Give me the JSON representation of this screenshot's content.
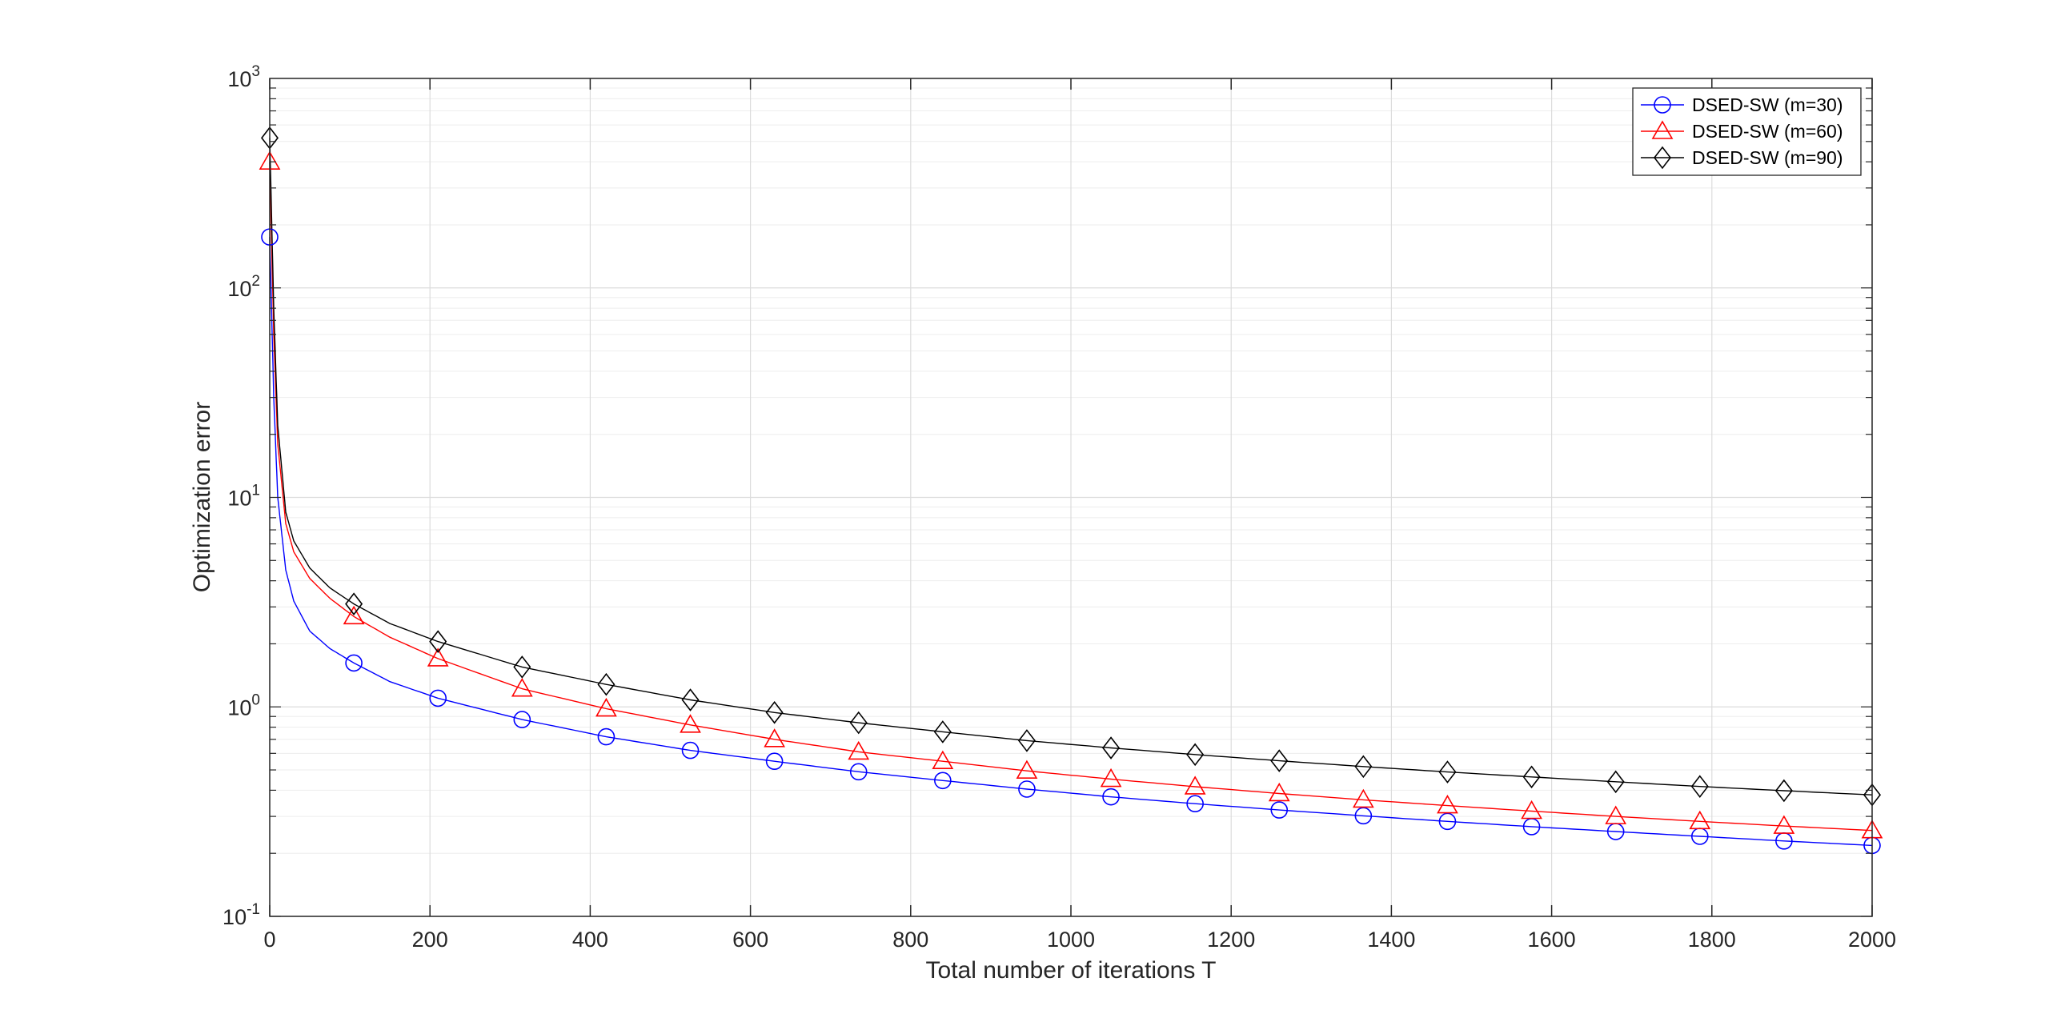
{
  "chart_data": {
    "type": "line",
    "title": "",
    "xlabel": "Total number of iterations T",
    "ylabel": "Optimization error",
    "xlim": [
      0,
      2000
    ],
    "ylim": [
      0.1,
      1000
    ],
    "yscale": "log",
    "grid": true,
    "minor_grid": true,
    "legend_position": "top-right",
    "x_ticks": [
      0,
      200,
      400,
      600,
      800,
      1000,
      1200,
      1400,
      1600,
      1800,
      2000
    ],
    "x_tick_labels": [
      "0",
      "200",
      "400",
      "600",
      "800",
      "1000",
      "1200",
      "1400",
      "1600",
      "1800",
      "2000"
    ],
    "y_ticks": [
      0.1,
      1,
      10,
      100,
      1000
    ],
    "y_tick_labels": [
      {
        "base": "10",
        "exp": "-1"
      },
      {
        "base": "10",
        "exp": "0"
      },
      {
        "base": "10",
        "exp": "1"
      },
      {
        "base": "10",
        "exp": "2"
      },
      {
        "base": "10",
        "exp": "3"
      }
    ],
    "series": [
      {
        "name": "DSED-SW (m=30)",
        "color": "#0000ff",
        "marker": "circle",
        "x": [
          0,
          5,
          10,
          20,
          30,
          50,
          75,
          105,
          150,
          210,
          315,
          420,
          525,
          630,
          735,
          840,
          945,
          1050,
          1155,
          1260,
          1365,
          1470,
          1575,
          1680,
          1785,
          1890,
          2000
        ],
        "y": [
          175,
          30,
          10,
          4.5,
          3.2,
          2.3,
          1.9,
          1.62,
          1.32,
          1.1,
          0.87,
          0.72,
          0.62,
          0.55,
          0.49,
          0.445,
          0.405,
          0.372,
          0.345,
          0.322,
          0.302,
          0.284,
          0.268,
          0.254,
          0.241,
          0.229,
          0.218
        ],
        "marker_x": [
          0,
          105,
          210,
          315,
          420,
          525,
          630,
          735,
          840,
          945,
          1050,
          1155,
          1260,
          1365,
          1470,
          1575,
          1680,
          1785,
          1890,
          2000
        ],
        "marker_y": [
          175,
          1.62,
          1.1,
          0.87,
          0.72,
          0.62,
          0.55,
          0.49,
          0.445,
          0.405,
          0.372,
          0.345,
          0.322,
          0.302,
          0.284,
          0.268,
          0.254,
          0.241,
          0.229,
          0.218
        ]
      },
      {
        "name": "DSED-SW (m=60)",
        "color": "#ff0000",
        "marker": "triangle",
        "x": [
          0,
          5,
          10,
          20,
          30,
          50,
          75,
          105,
          150,
          210,
          315,
          420,
          525,
          630,
          735,
          840,
          945,
          1050,
          1155,
          1260,
          1365,
          1470,
          1575,
          1680,
          1785,
          1890,
          2000
        ],
        "y": [
          400,
          60,
          18,
          7.5,
          5.5,
          4.1,
          3.3,
          2.7,
          2.15,
          1.7,
          1.22,
          0.98,
          0.82,
          0.7,
          0.61,
          0.55,
          0.495,
          0.452,
          0.416,
          0.386,
          0.36,
          0.338,
          0.318,
          0.3,
          0.284,
          0.27,
          0.257
        ],
        "marker_x": [
          0,
          105,
          210,
          315,
          420,
          525,
          630,
          735,
          840,
          945,
          1050,
          1155,
          1260,
          1365,
          1470,
          1575,
          1680,
          1785,
          1890,
          2000
        ],
        "marker_y": [
          400,
          2.7,
          1.7,
          1.22,
          0.98,
          0.82,
          0.7,
          0.61,
          0.55,
          0.495,
          0.452,
          0.416,
          0.386,
          0.36,
          0.338,
          0.318,
          0.3,
          0.284,
          0.27,
          0.257
        ]
      },
      {
        "name": "DSED-SW (m=90)",
        "color": "#000000",
        "marker": "diamond",
        "x": [
          0,
          5,
          10,
          20,
          30,
          50,
          75,
          105,
          150,
          210,
          315,
          420,
          525,
          630,
          735,
          840,
          945,
          1050,
          1155,
          1260,
          1365,
          1470,
          1575,
          1680,
          1785,
          1890,
          2000
        ],
        "y": [
          520,
          80,
          22,
          8.5,
          6.2,
          4.6,
          3.7,
          3.1,
          2.5,
          2.05,
          1.55,
          1.28,
          1.08,
          0.94,
          0.84,
          0.76,
          0.69,
          0.637,
          0.592,
          0.553,
          0.519,
          0.489,
          0.463,
          0.439,
          0.417,
          0.398,
          0.38
        ],
        "marker_x": [
          0,
          105,
          210,
          315,
          420,
          525,
          630,
          735,
          840,
          945,
          1050,
          1155,
          1260,
          1365,
          1470,
          1575,
          1680,
          1785,
          1890,
          2000
        ],
        "marker_y": [
          520,
          3.1,
          2.05,
          1.55,
          1.28,
          1.08,
          0.94,
          0.84,
          0.76,
          0.69,
          0.637,
          0.592,
          0.553,
          0.519,
          0.489,
          0.463,
          0.439,
          0.417,
          0.398,
          0.38
        ]
      }
    ]
  }
}
